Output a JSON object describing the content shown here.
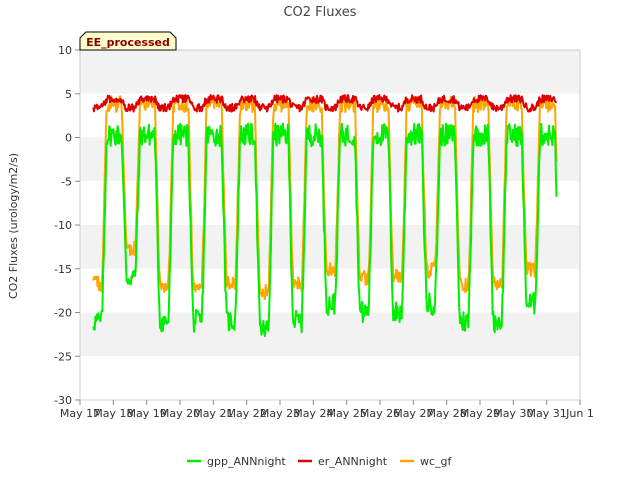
{
  "chart_data": {
    "type": "line",
    "title": "CO2 Fluxes",
    "ylabel": "CO2 Fluxes (urology/m2/s)",
    "xlabel": "",
    "badge": "EE_processed",
    "ylim": [
      -30,
      10
    ],
    "yticks": [
      10,
      5,
      0,
      -5,
      -10,
      -15,
      -20,
      -25,
      -30
    ],
    "xlim": [
      0,
      15
    ],
    "xtick_labels": [
      "May 17",
      "May 18",
      "May 19",
      "May 20",
      "May 21",
      "May 22",
      "May 23",
      "May 24",
      "May 25",
      "May 26",
      "May 27",
      "May 28",
      "May 29",
      "May 30",
      "May 31",
      "Jun 1"
    ],
    "legend": [
      "gpp_ANNnight",
      "er_ANNnight",
      "wc_gf"
    ],
    "legend_position": "bottom-center",
    "colors": {
      "gpp_ANNnight": "#00ee00",
      "er_ANNnight": "#dd0000",
      "wc_gf": "#ffa500",
      "band": "#f2f2f2",
      "axis": "#cccccc"
    },
    "x_start": 0.4,
    "x_end": 14.3,
    "daily_min_gpp": [
      -21,
      -16,
      -21,
      -21,
      -21,
      -22,
      -21,
      -19,
      -20,
      -20,
      -19,
      -21,
      -21,
      -19
    ],
    "series": [
      {
        "name": "gpp_ANNnight",
        "day_value": -20,
        "night_value": 0.3,
        "noise": 1.3
      },
      {
        "name": "er_ANNnight",
        "day_value": 3.4,
        "night_value": 4.4,
        "noise": 0.45
      },
      {
        "name": "wc_gf",
        "day_value": -16,
        "night_value": 3.8,
        "noise": 0.9
      }
    ]
  }
}
